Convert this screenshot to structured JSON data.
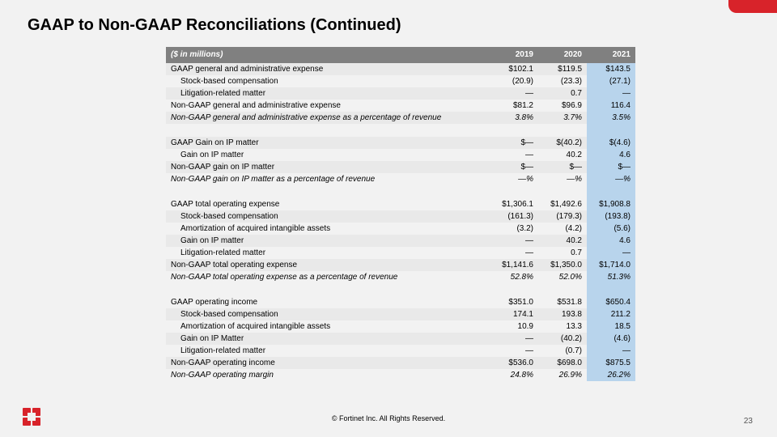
{
  "title": "GAAP to Non-GAAP Reconciliations (Continued)",
  "footer": "© Fortinet Inc. All Rights Reserved.",
  "page_number": "23",
  "colors": {
    "page_bg": "#f2f2f2",
    "header_bg": "#808080",
    "header_text": "#ffffff",
    "stripe_bg": "#e9e9e9",
    "highlight_bg": "#b8d4ec",
    "accent": "#d8232a",
    "text": "#000000"
  },
  "table": {
    "currency_note": "($ in millions)",
    "years": [
      "2019",
      "2020",
      "2021"
    ],
    "highlight_column_index": 2,
    "rows": [
      {
        "label": "GAAP general and administrative expense",
        "values": [
          "$102.1",
          "$119.5",
          "$143.5"
        ],
        "stripe": true
      },
      {
        "label": "Stock-based compensation",
        "indent": 1,
        "values": [
          "(20.9)",
          "(23.3)",
          "(27.1)"
        ]
      },
      {
        "label": "Litigation-related matter",
        "indent": 1,
        "values": [
          "—",
          "0.7",
          "—"
        ],
        "stripe": true
      },
      {
        "label": "Non-GAAP general and administrative expense",
        "values": [
          "$81.2",
          "$96.9",
          "116.4"
        ]
      },
      {
        "label": "Non-GAAP general and administrative expense as a percentage of revenue",
        "values": [
          "3.8%",
          "3.7%",
          "3.5%"
        ],
        "stripe": true,
        "italic": true
      },
      {
        "spacer": true
      },
      {
        "label": "GAAP Gain on IP matter",
        "values": [
          "$—",
          "$(40.2)",
          "$(4.6)"
        ],
        "stripe": true
      },
      {
        "label": "Gain on IP matter",
        "indent": 1,
        "values": [
          "—",
          "40.2",
          "4.6"
        ]
      },
      {
        "label": "Non-GAAP gain on IP matter",
        "values": [
          "$—",
          "$—",
          "$—"
        ],
        "stripe": true
      },
      {
        "label": "Non-GAAP gain on IP matter as a percentage of revenue",
        "values": [
          "—%",
          "—%",
          "—%"
        ],
        "italic": true
      },
      {
        "spacer": true
      },
      {
        "label": "GAAP total operating expense",
        "values": [
          "$1,306.1",
          "$1,492.6",
          "$1,908.8"
        ]
      },
      {
        "label": "Stock-based compensation",
        "indent": 1,
        "values": [
          "(161.3)",
          "(179.3)",
          "(193.8)"
        ],
        "stripe": true
      },
      {
        "label": "Amortization of acquired intangible assets",
        "indent": 1,
        "values": [
          "(3.2)",
          "(4.2)",
          "(5.6)"
        ]
      },
      {
        "label": "Gain on IP matter",
        "indent": 1,
        "values": [
          "—",
          "40.2",
          "4.6"
        ],
        "stripe": true
      },
      {
        "label": "Litigation-related matter",
        "indent": 1,
        "values": [
          "—",
          "0.7",
          "—"
        ]
      },
      {
        "label": "Non-GAAP total operating expense",
        "values": [
          "$1,141.6",
          "$1,350.0",
          "$1,714.0"
        ],
        "stripe": true
      },
      {
        "label": "Non-GAAP total operating expense as a percentage of revenue",
        "values": [
          "52.8%",
          "52.0%",
          "51.3%"
        ],
        "italic": true
      },
      {
        "spacer": true
      },
      {
        "label": "GAAP operating income",
        "values": [
          "$351.0",
          "$531.8",
          "$650.4"
        ]
      },
      {
        "label": "Stock-based compensation",
        "indent": 1,
        "values": [
          "174.1",
          "193.8",
          "211.2"
        ],
        "stripe": true
      },
      {
        "label": "Amortization of acquired intangible assets",
        "indent": 1,
        "values": [
          "10.9",
          "13.3",
          "18.5"
        ]
      },
      {
        "label": "Gain on IP Matter",
        "indent": 1,
        "values": [
          "—",
          "(40.2)",
          "(4.6)"
        ],
        "stripe": true
      },
      {
        "label": "Litigation-related matter",
        "indent": 1,
        "values": [
          "—",
          "(0.7)",
          "—"
        ]
      },
      {
        "label": "Non-GAAP operating income",
        "values": [
          "$536.0",
          "$698.0",
          "$875.5"
        ],
        "stripe": true
      },
      {
        "label": "Non-GAAP operating margin",
        "values": [
          "24.8%",
          "26.9%",
          "26.2%"
        ],
        "italic": true
      }
    ]
  }
}
